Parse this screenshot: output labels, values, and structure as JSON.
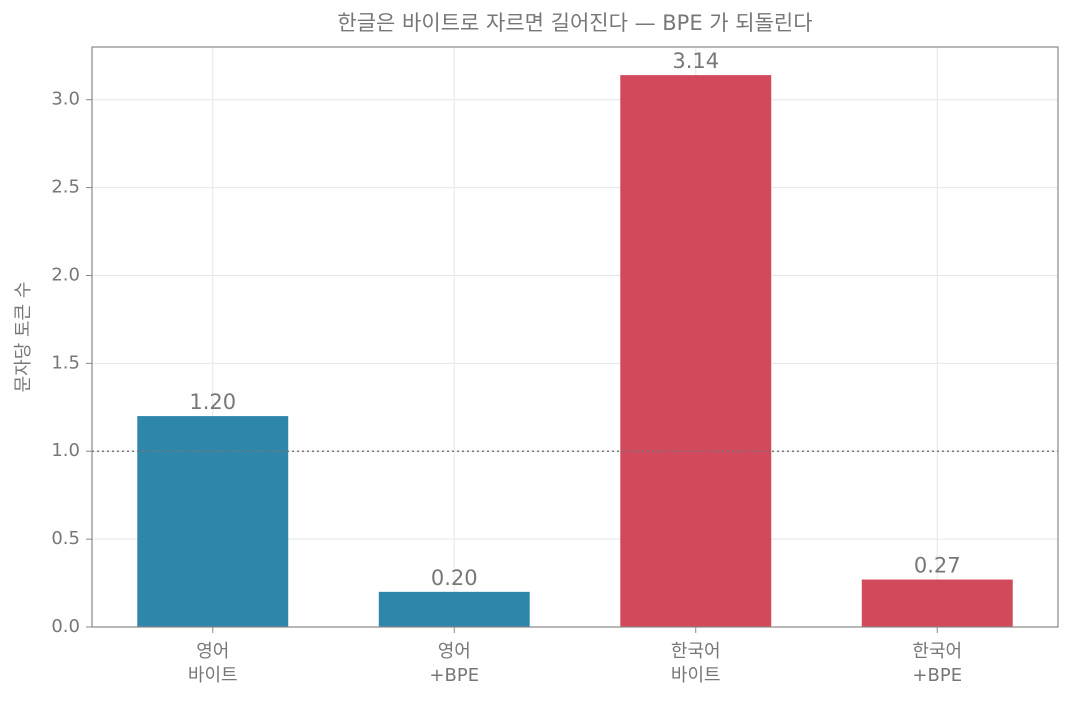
{
  "chart_data": {
    "type": "bar",
    "title": "한글은 바이트로 자르면 길어진다 — BPE 가 되돌린다",
    "ylabel": "문자당 토큰 수",
    "categories": [
      "영어\n바이트",
      "영어\n+BPE",
      "한국어\n바이트",
      "한국어\n+BPE"
    ],
    "values": [
      1.2,
      0.2,
      3.14,
      0.27
    ],
    "value_labels": [
      "1.20",
      "0.20",
      "3.14",
      "0.27"
    ],
    "colors": [
      "#2e86ab",
      "#2e86ab",
      "#d1495b",
      "#d1495b"
    ],
    "ylim": [
      0,
      3.3
    ],
    "yticks": [
      {
        "value": 0,
        "label": "0.0"
      },
      {
        "value": 0.5,
        "label": "0.5"
      },
      {
        "value": 1,
        "label": "1.0"
      },
      {
        "value": 1.5,
        "label": "1.5"
      },
      {
        "value": 2,
        "label": "2.0"
      },
      {
        "value": 2.5,
        "label": "2.5"
      },
      {
        "value": 3,
        "label": "3.0"
      }
    ],
    "hline": 1,
    "grid": true
  }
}
